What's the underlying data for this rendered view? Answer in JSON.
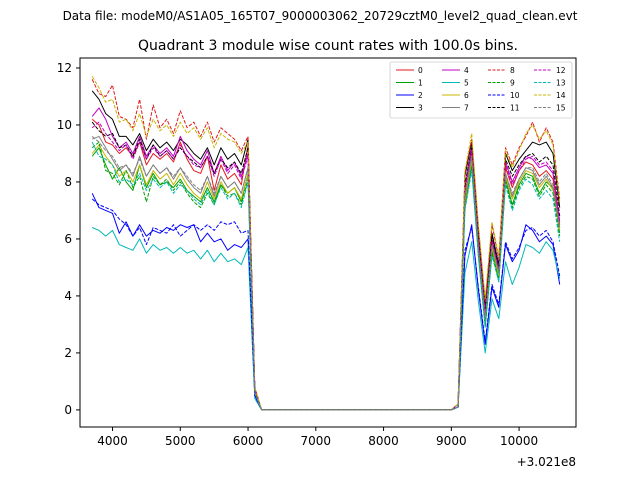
{
  "suptitle": "Data file: modeM0/AS1A05_165T07_9000003062_20729cztM0_level2_quad_clean.evt",
  "chart_data": {
    "type": "line",
    "title": "Quadrant 3 module wise count rates with 100.0s bins.",
    "xlabel": "",
    "ylabel": "",
    "x_offset_label": "+3.021e8",
    "xlim": [
      3520,
      10840
    ],
    "ylim": [
      -0.6,
      12.35
    ],
    "x_ticks": [
      4000,
      5000,
      6000,
      7000,
      8000,
      9000,
      10000
    ],
    "y_ticks": [
      0,
      2,
      4,
      6,
      8,
      10,
      12
    ],
    "grid": false,
    "legend_position": "top-right",
    "x_seg1": [
      3700,
      3800,
      3900,
      4000,
      4100,
      4200,
      4300,
      4400,
      4500,
      4600,
      4700,
      4800,
      4900,
      5000,
      5100,
      5200,
      5300,
      5400,
      5500,
      5600,
      5700,
      5800,
      5900,
      6000,
      6100,
      6200
    ],
    "x_seg2": [
      9100,
      9200,
      9300,
      9400,
      9500,
      9600,
      9700,
      9800,
      9900,
      10000,
      10100,
      10200,
      10300,
      10400,
      10500,
      10600
    ],
    "series": [
      {
        "name": "0",
        "color": "#e41a1c",
        "dashed": false,
        "seg1": [
          10.2,
          10.0,
          9.4,
          9.3,
          9.0,
          9.2,
          8.9,
          9.4,
          8.6,
          9.0,
          8.8,
          9.0,
          8.7,
          9.4,
          8.8,
          8.4,
          8.3,
          8.9,
          7.7,
          8.6,
          8.1,
          8.3,
          7.9,
          9.3,
          0.7,
          0.0
        ],
        "seg2": [
          0.2,
          7.5,
          9.0,
          5.9,
          3.3,
          5.9,
          4.9,
          8.5,
          7.8,
          8.4,
          8.7,
          8.6,
          8.2,
          8.4,
          8.1,
          6.5
        ]
      },
      {
        "name": "1",
        "color": "#00a000",
        "dashed": false,
        "seg1": [
          8.9,
          9.2,
          8.6,
          8.1,
          8.5,
          8.0,
          7.7,
          8.6,
          7.8,
          8.3,
          7.9,
          8.0,
          7.8,
          8.1,
          7.7,
          7.5,
          7.3,
          7.8,
          7.3,
          7.9,
          7.6,
          7.8,
          7.3,
          8.3,
          0.6,
          0.0
        ],
        "seg2": [
          0.1,
          7.2,
          8.6,
          5.5,
          3.0,
          5.6,
          4.6,
          8.1,
          7.2,
          7.9,
          8.3,
          8.2,
          7.6,
          8.0,
          7.8,
          6.2
        ]
      },
      {
        "name": "2",
        "color": "#0000ff",
        "dashed": false,
        "seg1": [
          7.6,
          7.1,
          7.0,
          6.9,
          6.2,
          6.6,
          6.1,
          6.5,
          6.1,
          6.3,
          6.2,
          6.4,
          6.3,
          6.5,
          6.4,
          6.5,
          5.9,
          6.2,
          5.9,
          6.0,
          5.6,
          5.8,
          5.7,
          6.0,
          0.5,
          0.0
        ],
        "seg2": [
          0.1,
          5.4,
          6.5,
          4.2,
          2.3,
          4.3,
          3.6,
          5.8,
          5.2,
          5.6,
          6.5,
          6.3,
          5.9,
          6.1,
          5.8,
          4.4
        ]
      },
      {
        "name": "3",
        "color": "#000000",
        "dashed": false,
        "seg1": [
          11.2,
          10.9,
          10.4,
          10.2,
          9.6,
          9.6,
          9.3,
          9.7,
          9.1,
          9.5,
          9.2,
          9.4,
          9.1,
          9.5,
          9.3,
          9.0,
          8.8,
          9.2,
          8.6,
          9.2,
          8.8,
          9.0,
          8.6,
          9.5,
          0.7,
          0.0
        ],
        "seg2": [
          0.2,
          8.2,
          9.4,
          6.2,
          3.6,
          6.2,
          5.1,
          9.0,
          8.4,
          8.8,
          9.1,
          9.4,
          9.3,
          9.4,
          9.0,
          7.1
        ]
      },
      {
        "name": "4",
        "color": "#c000c0",
        "dashed": false,
        "seg1": [
          10.3,
          10.6,
          10.2,
          9.6,
          9.2,
          9.4,
          9.0,
          9.6,
          8.9,
          9.3,
          9.0,
          9.2,
          8.9,
          9.6,
          9.1,
          8.8,
          8.6,
          9.1,
          8.3,
          8.9,
          8.4,
          8.7,
          8.2,
          9.0,
          0.7,
          0.0
        ],
        "seg2": [
          0.2,
          7.8,
          9.2,
          6.0,
          3.4,
          6.0,
          5.0,
          8.7,
          8.0,
          8.5,
          8.9,
          8.8,
          8.5,
          8.6,
          8.3,
          6.6
        ]
      },
      {
        "name": "5",
        "color": "#00b8b8",
        "dashed": false,
        "seg1": [
          6.4,
          6.3,
          6.1,
          6.3,
          5.8,
          5.7,
          5.6,
          6.0,
          5.5,
          5.8,
          5.6,
          5.7,
          5.5,
          5.7,
          5.5,
          5.6,
          5.3,
          5.6,
          5.2,
          5.5,
          5.2,
          5.3,
          5.1,
          5.7,
          0.4,
          0.0
        ],
        "seg2": [
          0.1,
          4.8,
          5.9,
          3.8,
          2.0,
          3.9,
          3.2,
          5.2,
          4.4,
          5.0,
          5.8,
          5.7,
          5.5,
          5.9,
          5.6,
          4.6
        ]
      },
      {
        "name": "6",
        "color": "#c8b400",
        "dashed": false,
        "seg1": [
          9.0,
          9.3,
          8.9,
          8.6,
          8.2,
          8.4,
          8.0,
          8.6,
          7.9,
          8.4,
          8.1,
          8.3,
          7.9,
          8.3,
          7.9,
          7.6,
          7.4,
          8.0,
          7.4,
          8.0,
          7.6,
          7.8,
          7.4,
          8.3,
          0.6,
          0.0
        ],
        "seg2": [
          0.1,
          7.3,
          8.8,
          5.6,
          3.1,
          5.7,
          4.7,
          8.2,
          7.4,
          8.0,
          8.4,
          8.3,
          7.8,
          8.1,
          7.7,
          6.3
        ]
      },
      {
        "name": "7",
        "color": "#808080",
        "dashed": false,
        "seg1": [
          9.5,
          9.6,
          9.2,
          8.8,
          8.4,
          8.6,
          8.2,
          8.9,
          8.2,
          8.6,
          8.3,
          8.5,
          8.1,
          8.5,
          8.1,
          7.8,
          7.6,
          8.2,
          7.5,
          8.2,
          7.8,
          8.0,
          7.6,
          8.5,
          0.6,
          0.0
        ],
        "seg2": [
          0.1,
          7.4,
          8.9,
          5.7,
          3.2,
          5.8,
          4.8,
          8.3,
          7.5,
          8.1,
          8.5,
          8.4,
          7.9,
          8.2,
          7.8,
          6.4
        ]
      },
      {
        "name": "8",
        "color": "#e41a1c",
        "dashed": true,
        "seg1": [
          11.6,
          11.1,
          11.0,
          11.4,
          10.3,
          10.2,
          9.9,
          10.9,
          9.5,
          10.7,
          9.9,
          10.2,
          9.7,
          10.5,
          9.9,
          10.1,
          9.6,
          10.1,
          9.4,
          9.9,
          9.7,
          9.5,
          9.1,
          9.6,
          0.8,
          0.0
        ],
        "seg2": [
          0.2,
          8.3,
          9.5,
          6.4,
          3.8,
          6.5,
          5.3,
          9.2,
          8.6,
          9.2,
          9.6,
          10.1,
          9.4,
          9.9,
          9.4,
          7.4
        ]
      },
      {
        "name": "9",
        "color": "#00a000",
        "dashed": true,
        "seg1": [
          9.2,
          9.4,
          8.4,
          8.3,
          7.9,
          8.4,
          7.8,
          8.2,
          7.3,
          8.2,
          7.9,
          8.1,
          7.7,
          8.0,
          7.6,
          7.3,
          7.1,
          7.6,
          7.2,
          7.9,
          7.5,
          7.6,
          7.2,
          8.1,
          0.6,
          0.0
        ],
        "seg2": [
          0.1,
          7.1,
          8.5,
          5.4,
          2.9,
          5.5,
          4.5,
          8.0,
          7.1,
          7.8,
          8.2,
          8.1,
          7.5,
          7.9,
          7.6,
          6.1
        ]
      },
      {
        "name": "10",
        "color": "#0000ff",
        "dashed": true,
        "seg1": [
          7.4,
          7.2,
          7.1,
          7.0,
          6.7,
          6.5,
          6.1,
          6.4,
          5.8,
          6.4,
          6.3,
          6.2,
          6.5,
          6.1,
          6.3,
          6.5,
          6.3,
          6.5,
          6.3,
          6.6,
          6.5,
          6.6,
          6.2,
          6.3,
          0.5,
          0.0
        ],
        "seg2": [
          0.1,
          5.6,
          6.4,
          4.3,
          2.4,
          4.4,
          3.7,
          5.9,
          5.3,
          5.7,
          6.3,
          6.4,
          6.1,
          6.3,
          5.9,
          4.7
        ]
      },
      {
        "name": "11",
        "color": "#000000",
        "dashed": true,
        "seg1": [
          10.1,
          9.8,
          9.6,
          9.7,
          9.2,
          9.3,
          8.9,
          9.5,
          8.8,
          9.3,
          8.9,
          9.1,
          8.8,
          9.2,
          8.9,
          8.7,
          8.5,
          8.9,
          8.3,
          8.8,
          8.5,
          8.7,
          8.3,
          9.2,
          0.7,
          0.0
        ],
        "seg2": [
          0.2,
          7.9,
          9.2,
          6.1,
          3.5,
          6.1,
          5.0,
          8.8,
          8.2,
          8.6,
          8.9,
          9.0,
          8.7,
          8.9,
          8.6,
          6.8
        ]
      },
      {
        "name": "12",
        "color": "#c000c0",
        "dashed": true,
        "seg1": [
          9.9,
          10.1,
          9.7,
          9.4,
          9.1,
          9.3,
          8.8,
          9.4,
          8.8,
          9.2,
          8.9,
          9.1,
          8.8,
          9.3,
          8.9,
          8.6,
          8.5,
          8.9,
          8.2,
          8.8,
          8.3,
          8.6,
          8.1,
          8.9,
          0.7,
          0.0
        ],
        "seg2": [
          0.2,
          7.7,
          9.1,
          5.9,
          3.4,
          5.9,
          4.9,
          8.6,
          7.9,
          8.4,
          8.8,
          8.9,
          8.6,
          8.7,
          8.4,
          6.6
        ]
      },
      {
        "name": "13",
        "color": "#00b8b8",
        "dashed": true,
        "seg1": [
          9.4,
          8.9,
          8.8,
          8.6,
          8.0,
          8.1,
          7.9,
          8.3,
          7.7,
          8.1,
          7.8,
          8.0,
          7.6,
          7.9,
          7.7,
          7.4,
          7.2,
          7.7,
          7.2,
          7.8,
          7.4,
          7.6,
          7.1,
          8.0,
          0.6,
          0.0
        ],
        "seg2": [
          0.1,
          7.0,
          8.4,
          5.4,
          2.9,
          5.4,
          4.5,
          7.9,
          7.0,
          7.7,
          8.1,
          7.9,
          7.4,
          7.7,
          7.4,
          5.9
        ]
      },
      {
        "name": "14",
        "color": "#c8b400",
        "dashed": true,
        "seg1": [
          11.7,
          11.3,
          10.8,
          10.9,
          10.1,
          10.2,
          9.8,
          10.4,
          9.6,
          10.2,
          9.8,
          10.0,
          9.6,
          10.1,
          9.7,
          9.9,
          9.5,
          9.9,
          9.2,
          9.7,
          9.5,
          9.4,
          9.0,
          9.4,
          0.8,
          0.0
        ],
        "seg2": [
          0.2,
          8.4,
          9.7,
          6.5,
          3.9,
          6.6,
          5.4,
          9.1,
          8.5,
          9.1,
          9.7,
          10.0,
          9.5,
          9.8,
          9.3,
          7.3
        ]
      },
      {
        "name": "15",
        "color": "#808080",
        "dashed": true,
        "seg1": [
          9.6,
          9.4,
          9.1,
          8.9,
          8.5,
          8.6,
          8.3,
          8.8,
          8.2,
          8.6,
          8.3,
          8.5,
          8.2,
          8.5,
          8.2,
          7.9,
          7.7,
          8.2,
          7.6,
          8.2,
          7.8,
          8.0,
          7.6,
          8.5,
          0.6,
          0.0
        ],
        "seg2": [
          0.1,
          7.5,
          8.9,
          5.7,
          3.2,
          5.8,
          4.8,
          8.3,
          7.6,
          8.1,
          8.5,
          8.5,
          8.0,
          8.3,
          7.9,
          6.4
        ]
      }
    ]
  }
}
